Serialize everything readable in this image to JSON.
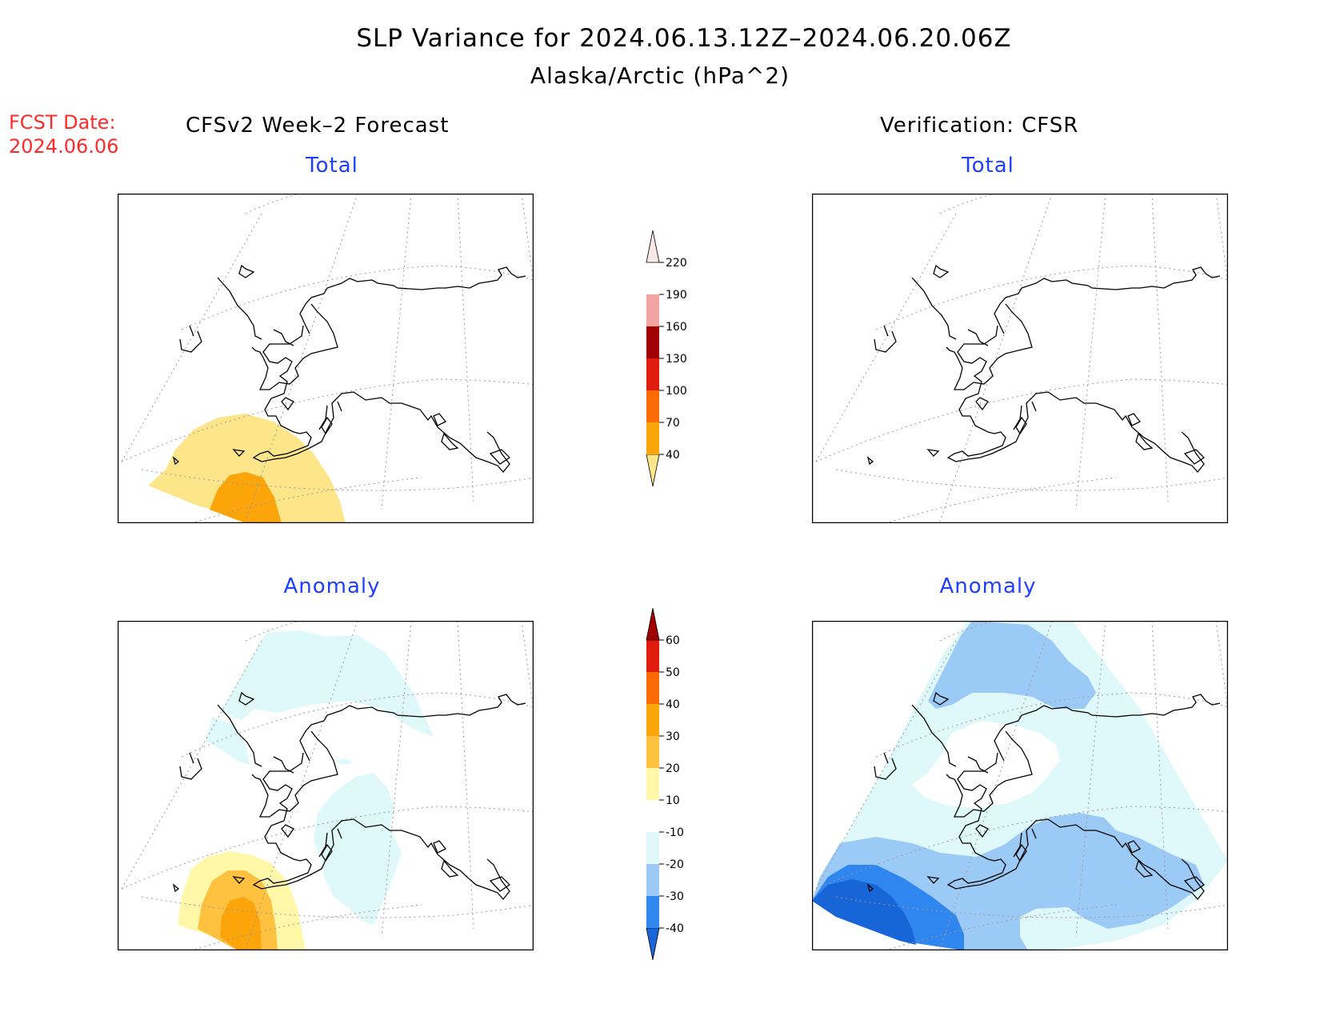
{
  "title": "SLP Variance for 2024.06.13.12Z–2024.06.20.06Z",
  "subtitle": "Alaska/Arctic (hPa^2)",
  "forecast_date": {
    "label": "FCST Date:",
    "value": "2024.06.06"
  },
  "columns": {
    "left": "CFSv2 Week–2 Forecast",
    "right": "Verification: CFSR"
  },
  "panels": {
    "forecast_total": {
      "title": "Total"
    },
    "verification_total": {
      "title": "Total"
    },
    "forecast_anomaly": {
      "title": "Anomaly"
    },
    "verification_anomaly": {
      "title": "Anomaly"
    }
  },
  "colorbar_total": {
    "labels": [
      "40",
      "70",
      "100",
      "130",
      "160",
      "190",
      "220"
    ],
    "colors": [
      "#fde68a",
      "#fca50a",
      "#fc6a03",
      "#e01b0c",
      "#a00000",
      "#f4a3a3",
      "#fde8e8"
    ]
  },
  "colorbar_anomaly": {
    "labels": [
      "-40",
      "-30",
      "-20",
      "-10",
      "10",
      "20",
      "30",
      "40",
      "50",
      "60"
    ],
    "colors": [
      "#1865d8",
      "#2f86ee",
      "#9ccaf6",
      "#dff9fb",
      "#ffffff",
      "#fff8a8",
      "#fec240",
      "#fca50a",
      "#fc6a03",
      "#e01b0c",
      "#a00000"
    ]
  }
}
